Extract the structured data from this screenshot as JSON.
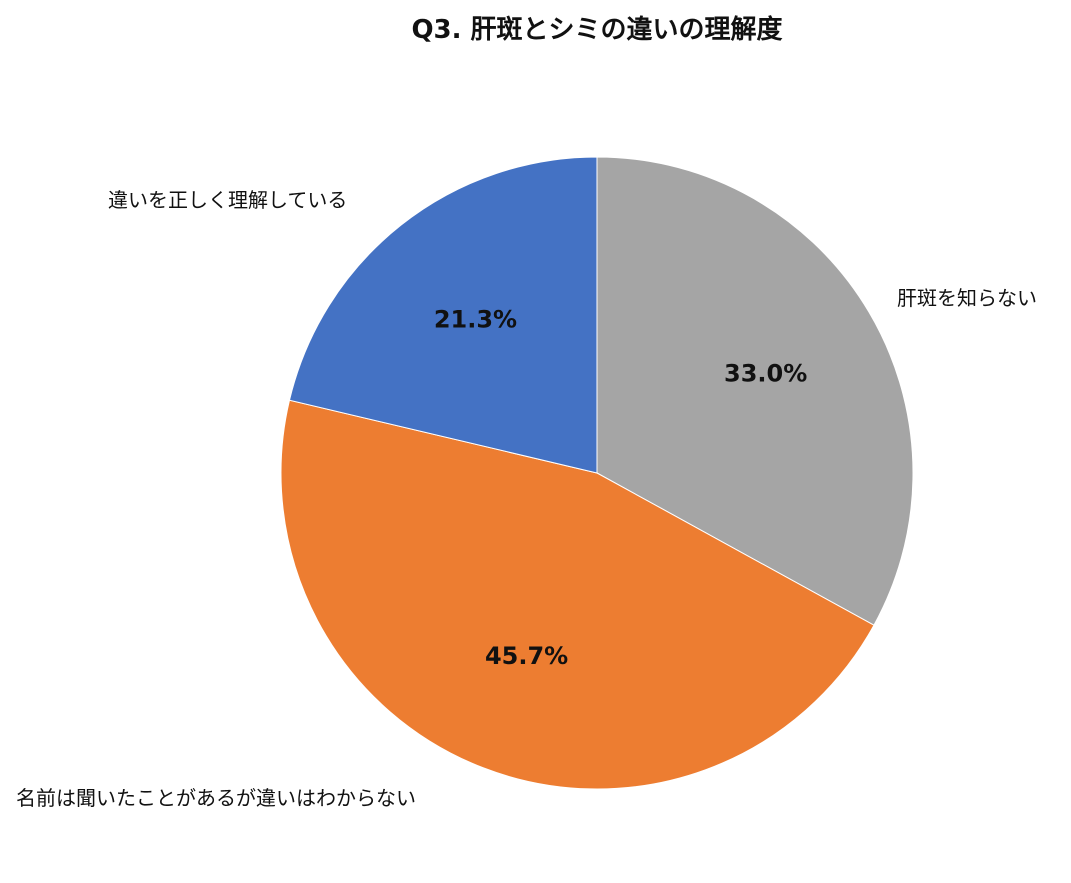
{
  "chart_data": {
    "type": "pie",
    "title": "Q3. 肝斑とシミの違いの理解度",
    "slices": [
      {
        "label": "肝斑を知らない",
        "value": 33.0,
        "value_label": "33.0%",
        "color": "#a5a5a5"
      },
      {
        "label": "名前は聞いたことがあるが違いはわからない",
        "value": 45.7,
        "value_label": "45.7%",
        "color": "#ed7d31"
      },
      {
        "label": "違いを正しく理解している",
        "value": 21.3,
        "value_label": "21.3%",
        "color": "#4472c4"
      }
    ],
    "start_angle_deg": 0,
    "direction": "clockwise"
  }
}
